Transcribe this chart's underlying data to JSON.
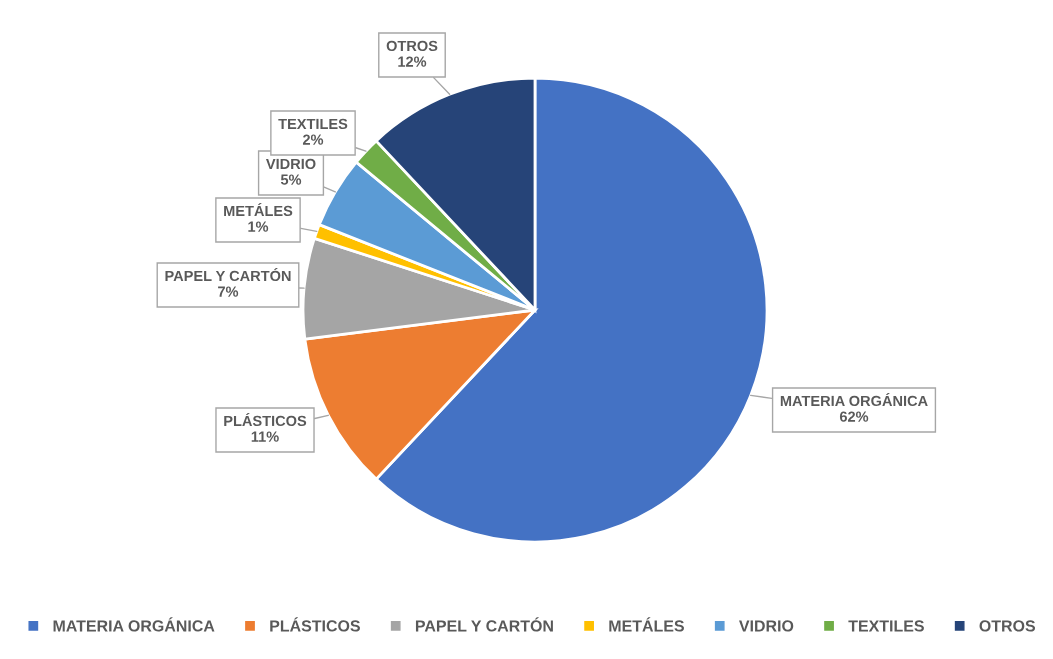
{
  "chart_data": {
    "type": "pie",
    "categories": [
      "MATERIA ORGÁNICA",
      "PLÁSTICOS",
      "PAPEL Y CARTÓN",
      "METÁLES",
      "VIDRIO",
      "TEXTILES",
      "OTROS"
    ],
    "values": [
      62,
      11,
      7,
      1,
      5,
      2,
      12
    ],
    "colors": [
      "#4472c4",
      "#ed7d31",
      "#a5a5a5",
      "#ffc000",
      "#5b9bd5",
      "#70ad47",
      "#264478"
    ],
    "value_labels": [
      "62%",
      "11%",
      "7%",
      "1%",
      "5%",
      "2%",
      "12%"
    ],
    "legend": "bottom"
  }
}
